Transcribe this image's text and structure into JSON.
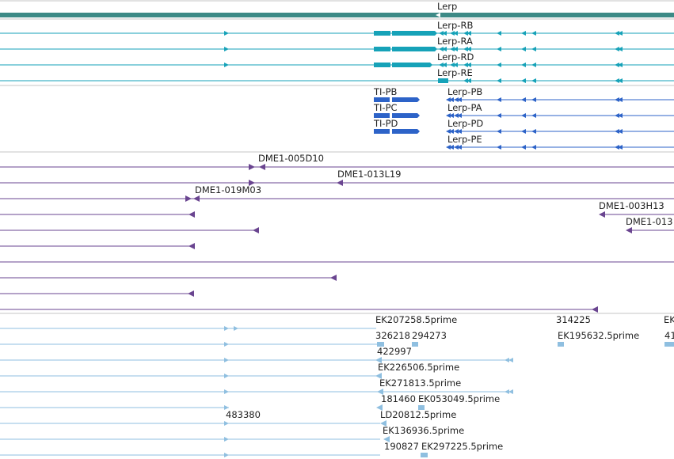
{
  "colors": {
    "gene": "#3d8a86",
    "mrna": "#16a2b8",
    "alt_mrna": "#2d63c8",
    "clone": "#6a4590",
    "est": "#8fbfe0",
    "separator": "#c6c6c6"
  },
  "gene_track": {
    "label": "Lerp"
  },
  "mrna_track": {
    "transcripts": [
      {
        "label": "Lerp-RB"
      },
      {
        "label": "Lerp-RA"
      },
      {
        "label": "Lerp-RD"
      },
      {
        "label": "Lerp-RE"
      }
    ]
  },
  "alt_track": {
    "left": [
      {
        "label": "TI-PB"
      },
      {
        "label": "TI-PC"
      },
      {
        "label": "TI-PD"
      }
    ],
    "right": [
      {
        "label": "Lerp-PB"
      },
      {
        "label": "Lerp-PA"
      },
      {
        "label": "Lerp-PD"
      },
      {
        "label": "Lerp-PE"
      }
    ]
  },
  "clone_track": {
    "labels": [
      "DME1-005D10",
      "DME1-013L19",
      "DME1-019M03",
      "DME1-003H13",
      "DME1-013"
    ]
  },
  "est_track": {
    "labels": [
      "EK207258.5prime",
      "314225",
      "EK",
      "326218",
      "294273",
      "EK195632.5prime",
      "41",
      "422997",
      "EK226506.5prime",
      "EK271813.5prime",
      "181460",
      "EK053049.5prime",
      "483380",
      "LD20812.5prime",
      "EK136936.5prime",
      "190827",
      "EK297225.5prime"
    ]
  }
}
